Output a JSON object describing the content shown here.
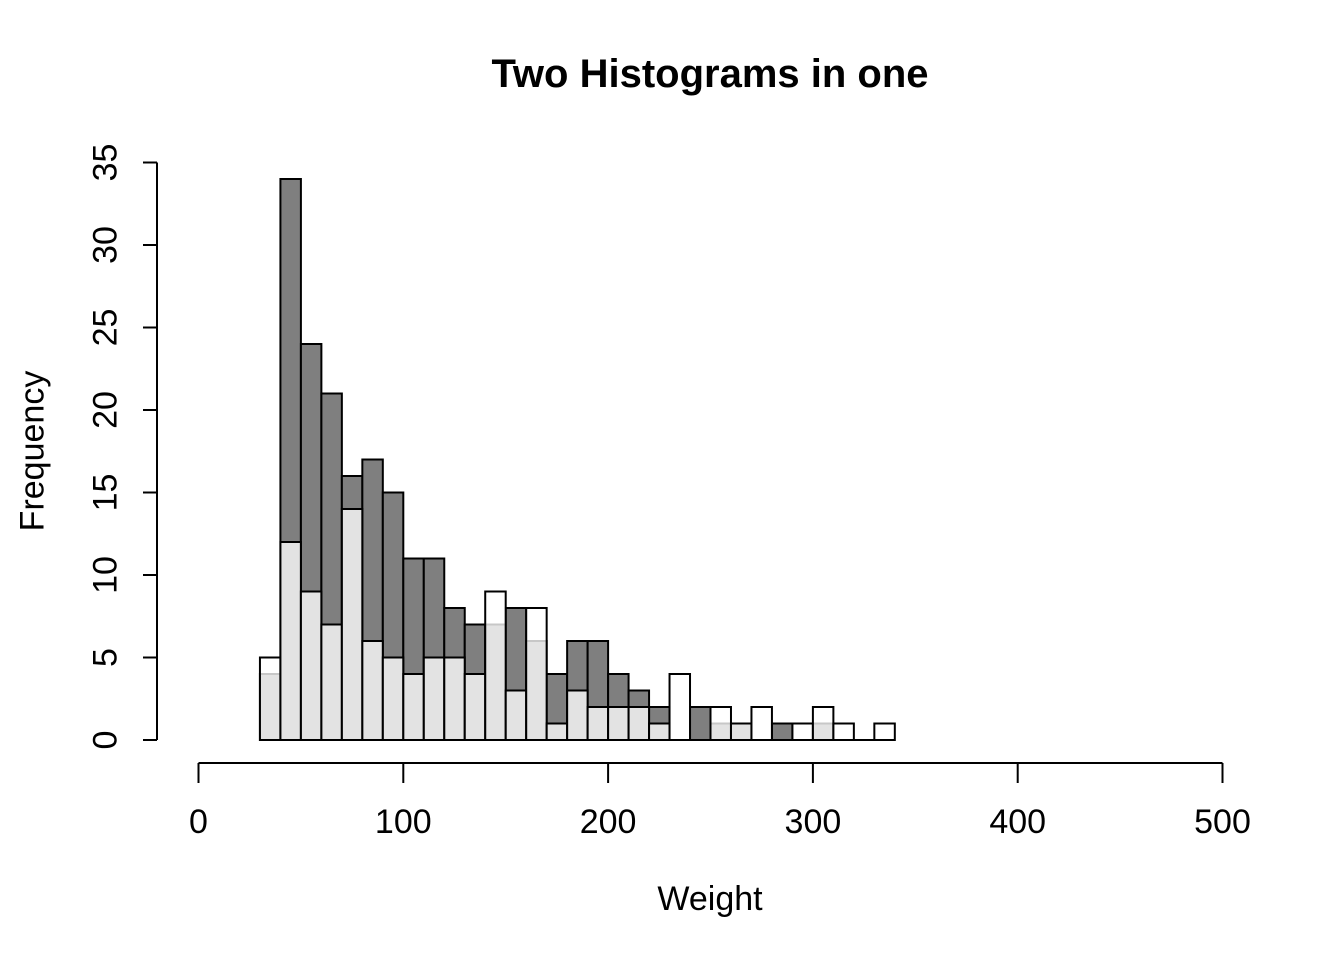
{
  "title": "Two Histograms in one",
  "x_axis": {
    "label": "Weight",
    "tick_values": [
      0,
      100,
      200,
      300,
      400,
      500
    ]
  },
  "y_axis": {
    "label": "Frequency",
    "tick_values": [
      0,
      5,
      10,
      15,
      20,
      25,
      30,
      35
    ]
  },
  "chart_data": {
    "type": "bar",
    "subtype": "overlaid-histograms",
    "title": "Two Histograms in one",
    "xlabel": "Weight",
    "ylabel": "Frequency",
    "xlim": [
      0,
      500
    ],
    "ylim": [
      0,
      35
    ],
    "grid": "off",
    "bin_width": 10,
    "bin_starts": [
      30,
      40,
      50,
      60,
      70,
      80,
      90,
      100,
      110,
      120,
      130,
      140,
      150,
      160,
      170,
      180,
      190,
      200,
      210,
      220,
      230,
      240,
      250,
      260,
      270,
      280,
      290,
      300,
      310,
      320,
      330
    ],
    "series": [
      {
        "name": "dark gray histogram (drawn first)",
        "fill": "#7f7f7f",
        "values": [
          4,
          34,
          24,
          21,
          16,
          17,
          15,
          11,
          11,
          8,
          7,
          7,
          8,
          6,
          4,
          6,
          6,
          4,
          3,
          2,
          0,
          2,
          1,
          1,
          0,
          1,
          0,
          1,
          0,
          0,
          0
        ]
      },
      {
        "name": "translucent white histogram (overlaid)",
        "fill": "rgba(255,255,255,0.78)",
        "values": [
          5,
          12,
          9,
          7,
          14,
          6,
          5,
          4,
          5,
          5,
          4,
          9,
          3,
          8,
          1,
          3,
          2,
          2,
          2,
          1,
          4,
          0,
          2,
          1,
          2,
          0,
          1,
          2,
          1,
          0,
          1
        ]
      }
    ],
    "overlap_render_color": "#e3e3e3",
    "bar_border_color": "#000000",
    "axis_color": "#000000",
    "background_color": "#ffffff"
  }
}
